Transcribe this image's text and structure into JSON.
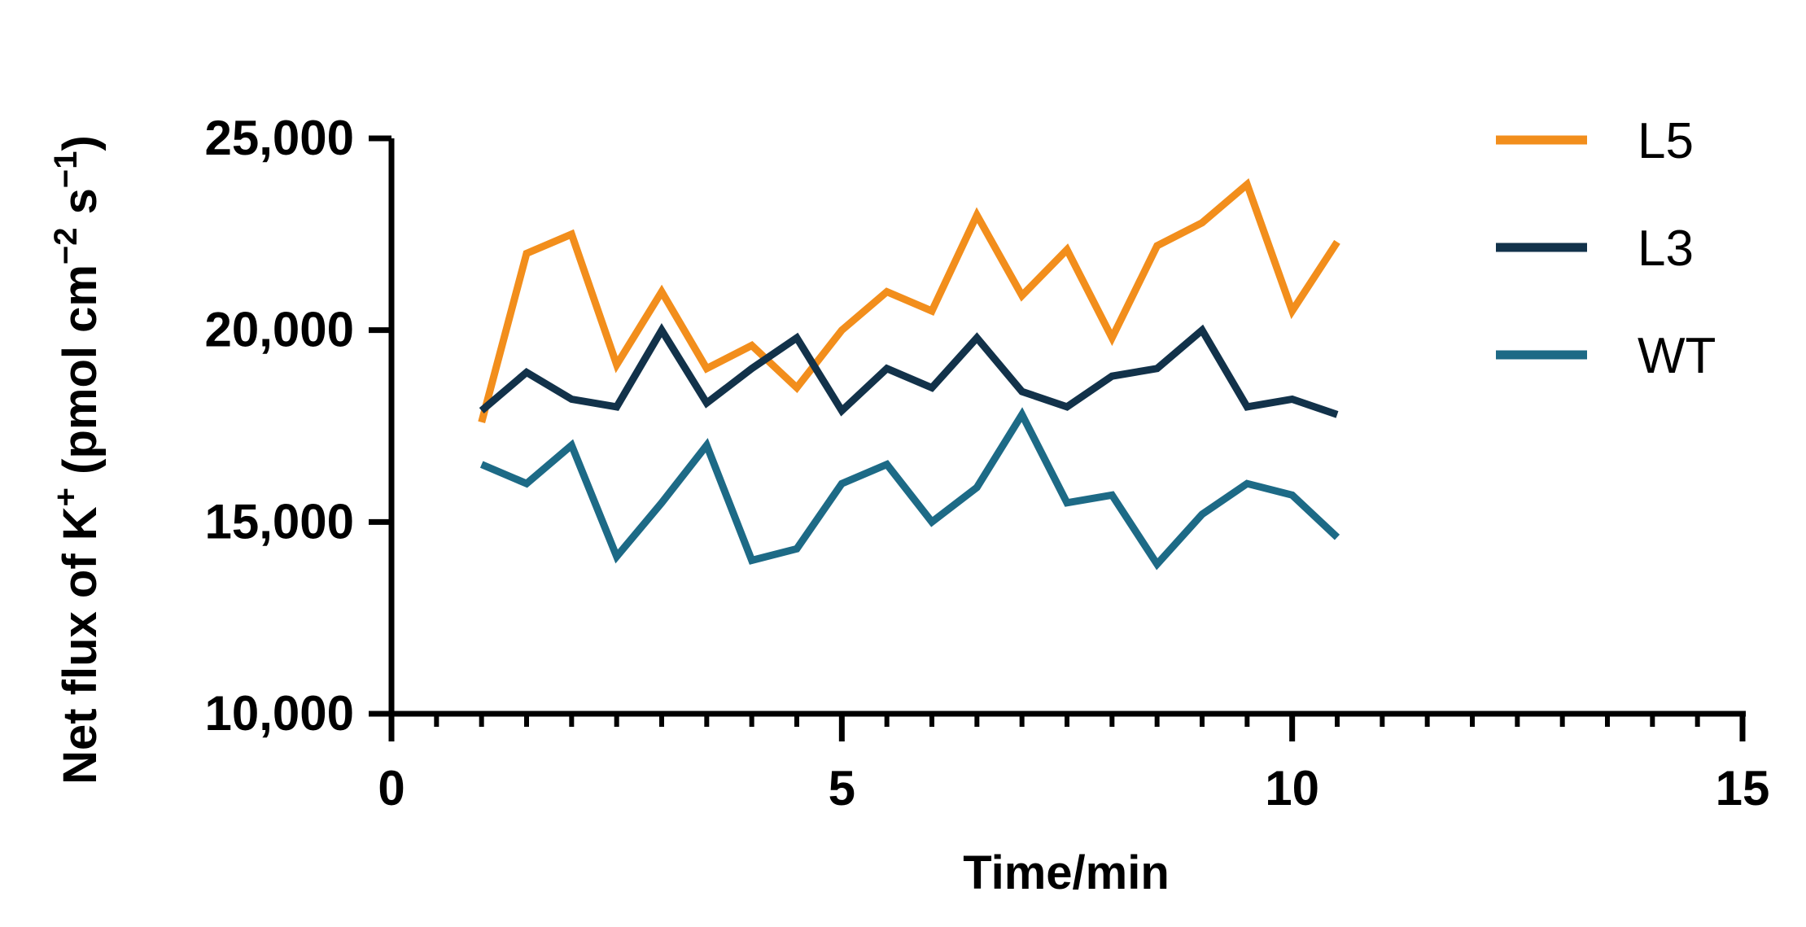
{
  "chart_data": {
    "type": "line",
    "title": "",
    "xlabel": "Time/min",
    "ylabel_parts": {
      "base": "Net flux of K",
      "ion_sup": "+",
      "unit_open": " (pmol cm",
      "cm_exp": "−2",
      "s_part": " s",
      "s_exp": "−1",
      "close": ")"
    },
    "xlim": [
      0,
      15
    ],
    "ylim": [
      10000,
      25000
    ],
    "x_ticks": [
      0,
      5,
      10,
      15
    ],
    "x_tick_labels": [
      "0",
      "5",
      "10",
      "15"
    ],
    "x_minor_step": 0.5,
    "y_ticks": [
      10000,
      15000,
      20000,
      25000
    ],
    "y_tick_labels": [
      "10,000",
      "15,000",
      "20,000",
      "25,000"
    ],
    "grid": false,
    "legend_position": "top-right",
    "x": [
      1,
      1.5,
      2,
      2.5,
      3,
      3.5,
      4,
      4.5,
      5,
      5.5,
      6,
      6.5,
      7,
      7.5,
      8,
      8.5,
      9,
      9.5,
      10,
      10.5
    ],
    "series": [
      {
        "name": "L5",
        "color": "#F28E1C",
        "values": [
          17600,
          22000,
          22500,
          19100,
          21000,
          19000,
          19600,
          18500,
          20000,
          21000,
          20500,
          23000,
          20900,
          22100,
          19800,
          22200,
          22800,
          23800,
          20500,
          22300
        ]
      },
      {
        "name": "L3",
        "color": "#12324A",
        "values": [
          17900,
          18900,
          18200,
          18000,
          20000,
          18100,
          19000,
          19800,
          17900,
          19000,
          18500,
          19800,
          18400,
          18000,
          18800,
          19000,
          20000,
          18000,
          18200,
          17800
        ]
      },
      {
        "name": "WT",
        "color": "#1D6A86",
        "values": [
          16500,
          16000,
          17000,
          14100,
          15500,
          17000,
          14000,
          14300,
          16000,
          16500,
          15000,
          15900,
          17800,
          15500,
          15700,
          13900,
          15200,
          16000,
          15700,
          14600
        ]
      }
    ]
  }
}
